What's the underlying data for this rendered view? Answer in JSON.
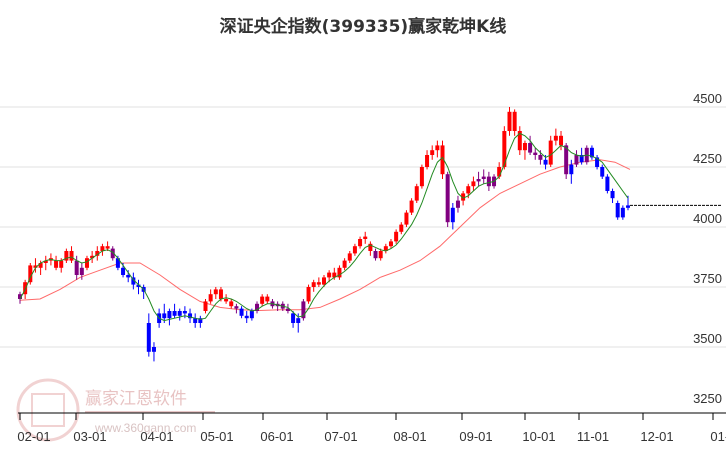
{
  "title": "深证央企指数(399335)赢家乾坤K线",
  "watermark": {
    "brand": "赢家江恩软件",
    "url": "www.360gann.com",
    "seal": [
      "江",
      "赢",
      "恩",
      "家"
    ]
  },
  "colors": {
    "up": "#ff0000",
    "down": "#0000ff",
    "mixed": "#800080",
    "ma_short": "#228b22",
    "ma_long": "#ff5050",
    "grid": "#e0e0e0",
    "axis": "#000000"
  },
  "chart_data": {
    "type": "candlestick",
    "title": "深证央企指数(399335)赢家乾坤K线",
    "xlabel": "",
    "ylabel": "",
    "x_ticks": [
      "02-01",
      "03-01",
      "04-01",
      "05-01",
      "06-01",
      "07-01",
      "08-01",
      "09-01",
      "10-01",
      "11-01",
      "12-01",
      "01-01"
    ],
    "y_ticks": [
      3250,
      3500,
      3750,
      4000,
      4250,
      4500
    ],
    "ylim": [
      3220,
      4600
    ],
    "grid": "horizontal",
    "series": [
      {
        "name": "K线",
        "note": "approximate monthly path: Feb ~3700→3900, Mar peak ~3920, Apr low ~3450, May–Jun ~3600–3720, Jul ~3580→3800, Aug ~3850→4000, Sep peak ~4350 then ~4000, Oct high ~4500, Nov ~4300, late Nov ~4050"
      },
      {
        "name": "短期均线",
        "color": "green"
      },
      {
        "name": "长期均线",
        "color": "red"
      }
    ],
    "last_price_line": 4090,
    "candles_ref": "candles"
  },
  "candles": [
    [
      3700,
      3730,
      3680,
      3720,
      "m"
    ],
    [
      3720,
      3780,
      3700,
      3770,
      "u"
    ],
    [
      3770,
      3850,
      3760,
      3840,
      "u"
    ],
    [
      3840,
      3870,
      3810,
      3830,
      "u"
    ],
    [
      3830,
      3860,
      3800,
      3850,
      "u"
    ],
    [
      3850,
      3880,
      3820,
      3860,
      "u"
    ],
    [
      3860,
      3890,
      3840,
      3870,
      "u"
    ],
    [
      3860,
      3880,
      3820,
      3830,
      "u"
    ],
    [
      3830,
      3870,
      3810,
      3860,
      "u"
    ],
    [
      3860,
      3910,
      3850,
      3900,
      "u"
    ],
    [
      3900,
      3920,
      3850,
      3860,
      "u"
    ],
    [
      3860,
      3880,
      3780,
      3800,
      "m"
    ],
    [
      3800,
      3850,
      3780,
      3830,
      "m"
    ],
    [
      3830,
      3880,
      3820,
      3870,
      "u"
    ],
    [
      3870,
      3900,
      3850,
      3880,
      "u"
    ],
    [
      3880,
      3920,
      3860,
      3900,
      "u"
    ],
    [
      3900,
      3930,
      3880,
      3920,
      "u"
    ],
    [
      3920,
      3940,
      3900,
      3910,
      "u"
    ],
    [
      3910,
      3920,
      3860,
      3870,
      "m"
    ],
    [
      3870,
      3880,
      3820,
      3830,
      "d"
    ],
    [
      3830,
      3850,
      3790,
      3800,
      "d"
    ],
    [
      3800,
      3820,
      3770,
      3790,
      "d"
    ],
    [
      3790,
      3810,
      3740,
      3760,
      "d"
    ],
    [
      3760,
      3780,
      3720,
      3750,
      "d"
    ],
    [
      3750,
      3760,
      3700,
      3730,
      "d"
    ],
    [
      3600,
      3640,
      3460,
      3480,
      "d"
    ],
    [
      3480,
      3520,
      3440,
      3500,
      "d"
    ],
    [
      3600,
      3660,
      3580,
      3640,
      "d"
    ],
    [
      3640,
      3680,
      3600,
      3620,
      "d"
    ],
    [
      3620,
      3660,
      3590,
      3650,
      "d"
    ],
    [
      3650,
      3680,
      3620,
      3630,
      "d"
    ],
    [
      3630,
      3660,
      3610,
      3650,
      "d"
    ],
    [
      3650,
      3670,
      3620,
      3640,
      "d"
    ],
    [
      3640,
      3660,
      3600,
      3620,
      "d"
    ],
    [
      3620,
      3640,
      3580,
      3600,
      "d"
    ],
    [
      3600,
      3630,
      3580,
      3620,
      "d"
    ],
    [
      3650,
      3700,
      3640,
      3690,
      "u"
    ],
    [
      3690,
      3740,
      3680,
      3720,
      "u"
    ],
    [
      3720,
      3750,
      3700,
      3740,
      "u"
    ],
    [
      3740,
      3750,
      3690,
      3700,
      "u"
    ],
    [
      3700,
      3720,
      3680,
      3690,
      "u"
    ],
    [
      3690,
      3700,
      3660,
      3670,
      "u"
    ],
    [
      3670,
      3680,
      3640,
      3660,
      "m"
    ],
    [
      3660,
      3670,
      3620,
      3630,
      "d"
    ],
    [
      3630,
      3650,
      3600,
      3620,
      "d"
    ],
    [
      3620,
      3660,
      3610,
      3650,
      "d"
    ],
    [
      3650,
      3690,
      3640,
      3680,
      "m"
    ],
    [
      3680,
      3720,
      3670,
      3710,
      "u"
    ],
    [
      3710,
      3720,
      3680,
      3690,
      "u"
    ],
    [
      3690,
      3700,
      3660,
      3670,
      "m"
    ],
    [
      3670,
      3690,
      3650,
      3680,
      "m"
    ],
    [
      3680,
      3690,
      3650,
      3660,
      "m"
    ],
    [
      3660,
      3680,
      3640,
      3650,
      "m"
    ],
    [
      3640,
      3650,
      3580,
      3600,
      "d"
    ],
    [
      3600,
      3640,
      3560,
      3620,
      "d"
    ],
    [
      3620,
      3700,
      3610,
      3690,
      "m"
    ],
    [
      3690,
      3760,
      3680,
      3750,
      "u"
    ],
    [
      3750,
      3780,
      3730,
      3770,
      "u"
    ],
    [
      3770,
      3790,
      3750,
      3760,
      "u"
    ],
    [
      3760,
      3800,
      3750,
      3790,
      "u"
    ],
    [
      3790,
      3820,
      3770,
      3810,
      "u"
    ],
    [
      3810,
      3830,
      3780,
      3790,
      "u"
    ],
    [
      3790,
      3840,
      3780,
      3830,
      "u"
    ],
    [
      3830,
      3870,
      3820,
      3860,
      "u"
    ],
    [
      3860,
      3900,
      3850,
      3890,
      "u"
    ],
    [
      3890,
      3930,
      3880,
      3920,
      "u"
    ],
    [
      3920,
      3960,
      3910,
      3950,
      "u"
    ],
    [
      3950,
      3980,
      3930,
      3960,
      "u"
    ],
    [
      3930,
      3940,
      3880,
      3900,
      "u"
    ],
    [
      3900,
      3910,
      3860,
      3870,
      "m"
    ],
    [
      3870,
      3910,
      3860,
      3900,
      "u"
    ],
    [
      3900,
      3930,
      3890,
      3920,
      "u"
    ],
    [
      3920,
      3950,
      3910,
      3940,
      "u"
    ],
    [
      3940,
      3990,
      3930,
      3980,
      "u"
    ],
    [
      3980,
      4020,
      3970,
      4010,
      "u"
    ],
    [
      4010,
      4070,
      4000,
      4060,
      "u"
    ],
    [
      4060,
      4120,
      4050,
      4110,
      "u"
    ],
    [
      4110,
      4180,
      4100,
      4170,
      "u"
    ],
    [
      4170,
      4260,
      4160,
      4250,
      "u"
    ],
    [
      4250,
      4320,
      4240,
      4300,
      "u"
    ],
    [
      4300,
      4340,
      4280,
      4320,
      "u"
    ],
    [
      4320,
      4360,
      4290,
      4340,
      "u"
    ],
    [
      4340,
      4360,
      4200,
      4220,
      "u"
    ],
    [
      4220,
      4230,
      4000,
      4020,
      "m"
    ],
    [
      4020,
      4100,
      3990,
      4080,
      "d"
    ],
    [
      4080,
      4130,
      4060,
      4110,
      "m"
    ],
    [
      4110,
      4150,
      4090,
      4140,
      "u"
    ],
    [
      4140,
      4180,
      4120,
      4170,
      "u"
    ],
    [
      4170,
      4210,
      4150,
      4190,
      "u"
    ],
    [
      4190,
      4230,
      4170,
      4200,
      "m"
    ],
    [
      4200,
      4240,
      4180,
      4210,
      "m"
    ],
    [
      4210,
      4230,
      4150,
      4170,
      "m"
    ],
    [
      4170,
      4220,
      4160,
      4210,
      "m"
    ],
    [
      4210,
      4270,
      4200,
      4250,
      "u"
    ],
    [
      4250,
      4420,
      4240,
      4400,
      "u"
    ],
    [
      4400,
      4500,
      4380,
      4480,
      "u"
    ],
    [
      4480,
      4490,
      4380,
      4400,
      "u"
    ],
    [
      4400,
      4420,
      4300,
      4320,
      "u"
    ],
    [
      4320,
      4360,
      4280,
      4350,
      "u"
    ],
    [
      4350,
      4380,
      4300,
      4310,
      "m"
    ],
    [
      4310,
      4330,
      4280,
      4300,
      "m"
    ],
    [
      4300,
      4320,
      4260,
      4280,
      "m"
    ],
    [
      4280,
      4300,
      4240,
      4260,
      "d"
    ],
    [
      4260,
      4380,
      4250,
      4360,
      "u"
    ],
    [
      4360,
      4410,
      4340,
      4380,
      "u"
    ],
    [
      4380,
      4400,
      4320,
      4340,
      "u"
    ],
    [
      4340,
      4350,
      4200,
      4220,
      "m"
    ],
    [
      4220,
      4280,
      4180,
      4260,
      "d"
    ],
    [
      4260,
      4320,
      4250,
      4300,
      "m"
    ],
    [
      4300,
      4330,
      4260,
      4270,
      "d"
    ],
    [
      4270,
      4340,
      4260,
      4330,
      "m"
    ],
    [
      4330,
      4340,
      4280,
      4290,
      "d"
    ],
    [
      4290,
      4300,
      4240,
      4250,
      "d"
    ],
    [
      4250,
      4260,
      4200,
      4210,
      "d"
    ],
    [
      4210,
      4220,
      4140,
      4150,
      "d"
    ],
    [
      4150,
      4160,
      4100,
      4120,
      "d"
    ],
    [
      4100,
      4110,
      4030,
      4040,
      "d"
    ],
    [
      4040,
      4090,
      4030,
      4080,
      "d"
    ],
    [
      4080,
      4130,
      4070,
      4090,
      "d"
    ]
  ],
  "ma_short": [
    3700,
    3740,
    3790,
    3830,
    3850,
    3860,
    3865,
    3860,
    3860,
    3870,
    3875,
    3860,
    3850,
    3855,
    3870,
    3885,
    3900,
    3905,
    3895,
    3870,
    3840,
    3810,
    3780,
    3760,
    3740,
    3700,
    3650,
    3620,
    3610,
    3615,
    3620,
    3625,
    3630,
    3625,
    3620,
    3615,
    3620,
    3650,
    3680,
    3700,
    3705,
    3700,
    3690,
    3675,
    3660,
    3650,
    3655,
    3670,
    3680,
    3680,
    3675,
    3670,
    3665,
    3645,
    3625,
    3630,
    3660,
    3700,
    3730,
    3755,
    3775,
    3790,
    3800,
    3815,
    3835,
    3860,
    3890,
    3915,
    3925,
    3915,
    3905,
    3900,
    3910,
    3925,
    3950,
    3980,
    4010,
    4050,
    4100,
    4160,
    4220,
    4270,
    4290,
    4250,
    4190,
    4140,
    4120,
    4130,
    4150,
    4170,
    4180,
    4185,
    4190,
    4210,
    4260,
    4320,
    4370,
    4390,
    4380,
    4360,
    4330,
    4310,
    4290,
    4300,
    4320,
    4340,
    4330,
    4310,
    4300,
    4295,
    4300,
    4295,
    4285,
    4270,
    4240,
    4210,
    4180,
    4150,
    4120
  ],
  "ma_long_points": [
    [
      20,
      3695
    ],
    [
      40,
      3700
    ],
    [
      60,
      3740
    ],
    [
      80,
      3790
    ],
    [
      100,
      3820
    ],
    [
      120,
      3850
    ],
    [
      140,
      3850
    ],
    [
      160,
      3800
    ],
    [
      180,
      3740
    ],
    [
      200,
      3690
    ],
    [
      220,
      3665
    ],
    [
      240,
      3655
    ],
    [
      260,
      3652
    ],
    [
      280,
      3655
    ],
    [
      300,
      3655
    ],
    [
      320,
      3665
    ],
    [
      340,
      3700
    ],
    [
      360,
      3740
    ],
    [
      380,
      3790
    ],
    [
      400,
      3820
    ],
    [
      420,
      3860
    ],
    [
      440,
      3920
    ],
    [
      460,
      4000
    ],
    [
      480,
      4080
    ],
    [
      500,
      4140
    ],
    [
      520,
      4180
    ],
    [
      540,
      4220
    ],
    [
      560,
      4250
    ],
    [
      580,
      4270
    ],
    [
      600,
      4280
    ],
    [
      615,
      4270
    ],
    [
      630,
      4240
    ]
  ]
}
